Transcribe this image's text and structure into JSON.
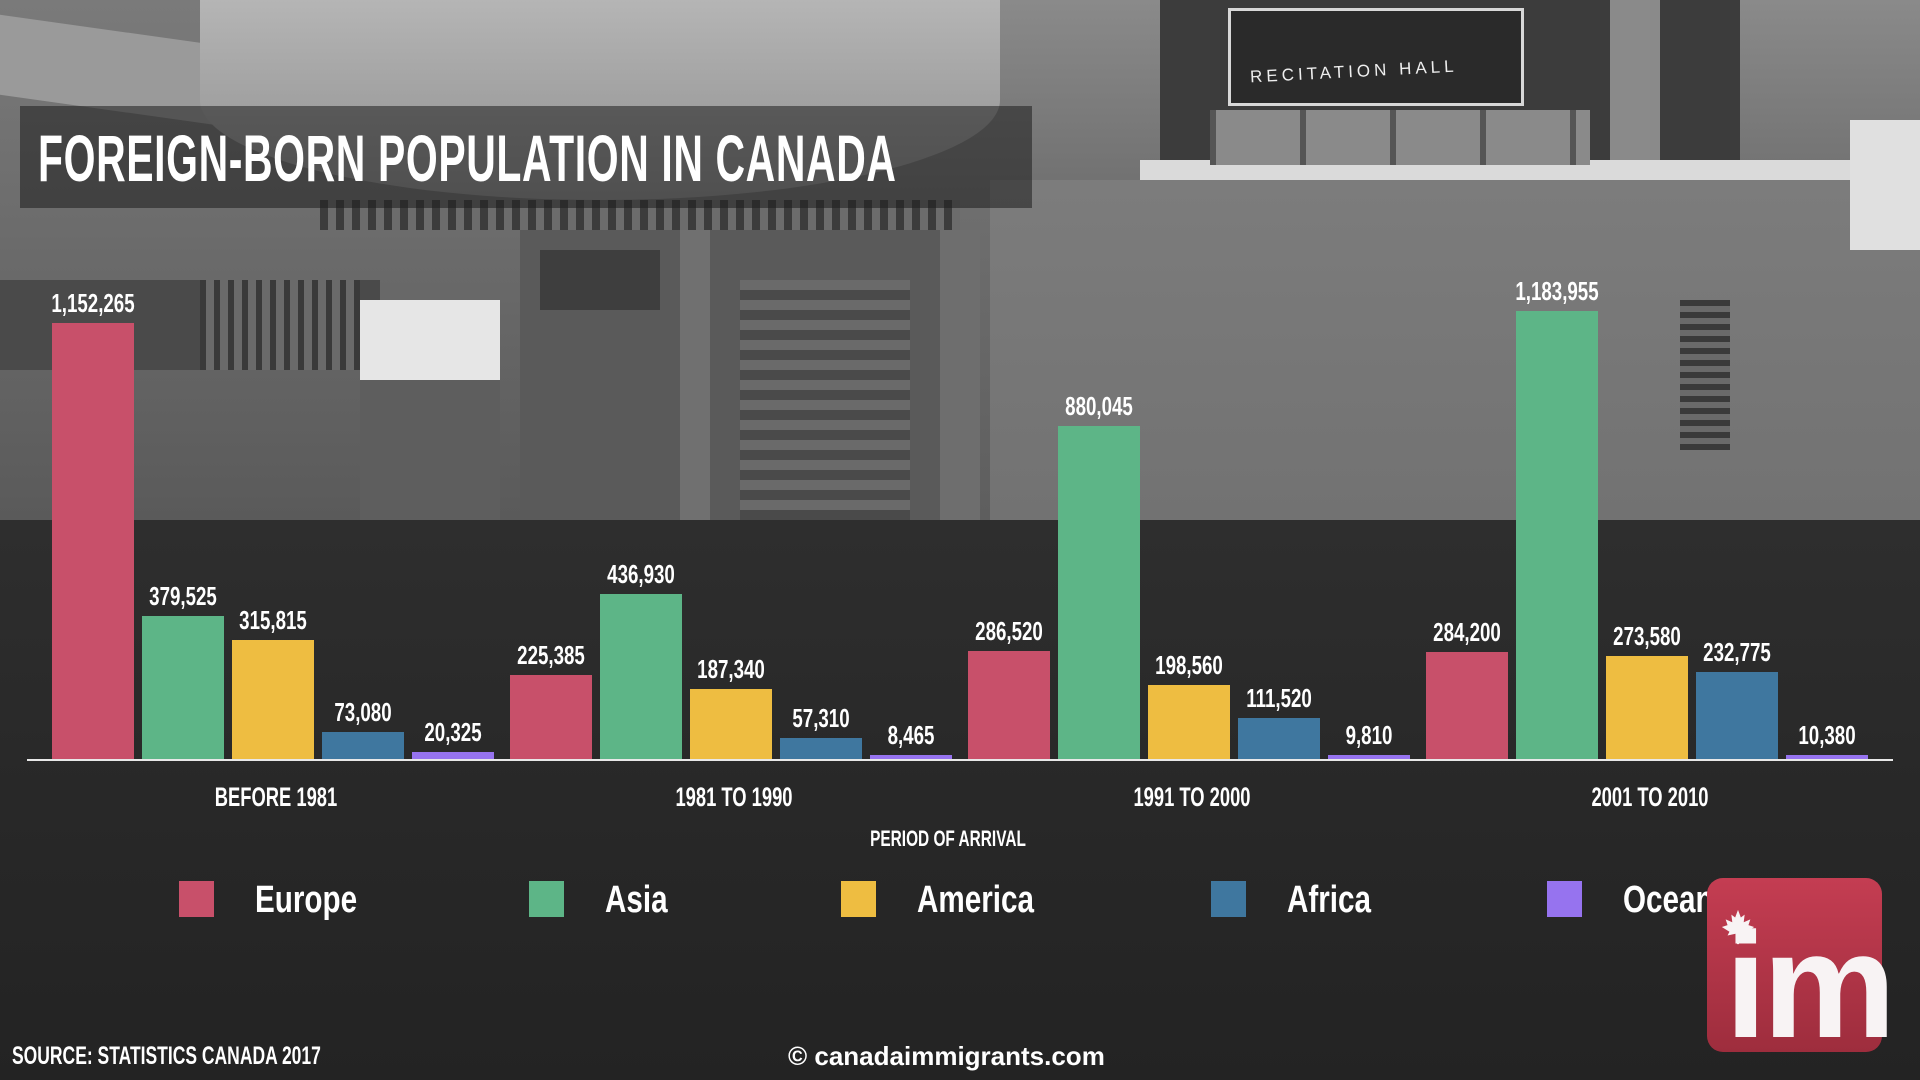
{
  "header": {
    "title": "FOREIGN-BORN POPULATION IN CANADA"
  },
  "legend": {
    "items": [
      {
        "label": "Europe",
        "color": "#c8506a"
      },
      {
        "label": "Asia",
        "color": "#5db587"
      },
      {
        "label": "America",
        "color": "#eebd41"
      },
      {
        "label": "Africa",
        "color": "#3f779f"
      },
      {
        "label": "Oceania",
        "color": "#9673ef"
      }
    ]
  },
  "axis": {
    "xlabel": "PERIOD OF ARRIVAL"
  },
  "footer": {
    "source": "SOURCE: STATISTICS CANADA 2017",
    "copyright": "© canadaimmigrants.com"
  },
  "logo": {
    "text": "im",
    "icon": "maple-leaf-icon"
  },
  "background": {
    "photo_sign": "RECITATION HALL"
  },
  "groups": [
    {
      "label": "BEFORE 1981",
      "values": [
        "1,152,265",
        "379,525",
        "315,815",
        "73,080",
        "20,325"
      ]
    },
    {
      "label": "1981 TO 1990",
      "values": [
        "225,385",
        "436,930",
        "187,340",
        "57,310",
        "8,465"
      ]
    },
    {
      "label": "1991 TO 2000",
      "values": [
        "286,520",
        "880,045",
        "198,560",
        "111,520",
        "9,810"
      ]
    },
    {
      "label": "2001 TO 2010",
      "values": [
        "284,200",
        "1,183,955",
        "273,580",
        "232,775",
        "10,380"
      ]
    }
  ],
  "chart_data": {
    "type": "bar",
    "title": "FOREIGN-BORN POPULATION IN CANADA",
    "xlabel": "PERIOD OF ARRIVAL",
    "ylabel": "",
    "categories": [
      "BEFORE 1981",
      "1981 TO 1990",
      "1991 TO 2000",
      "2001 TO 2010"
    ],
    "series": [
      {
        "name": "Europe",
        "color": "#c8506a",
        "values": [
          1152265,
          225385,
          286520,
          284200
        ]
      },
      {
        "name": "Asia",
        "color": "#5db587",
        "values": [
          379525,
          436930,
          880045,
          1183955
        ]
      },
      {
        "name": "America",
        "color": "#eebd41",
        "values": [
          315815,
          187340,
          198560,
          273580
        ]
      },
      {
        "name": "Africa",
        "color": "#3f779f",
        "values": [
          73080,
          57310,
          111520,
          232775
        ]
      },
      {
        "name": "Oceania",
        "color": "#9673ef",
        "values": [
          20325,
          8465,
          9810,
          10380
        ]
      }
    ],
    "ylim": [
      0,
      1200000
    ],
    "grid": false,
    "legend_position": "bottom",
    "data_labels": true,
    "source": "SOURCE: STATISTICS CANADA 2017"
  }
}
